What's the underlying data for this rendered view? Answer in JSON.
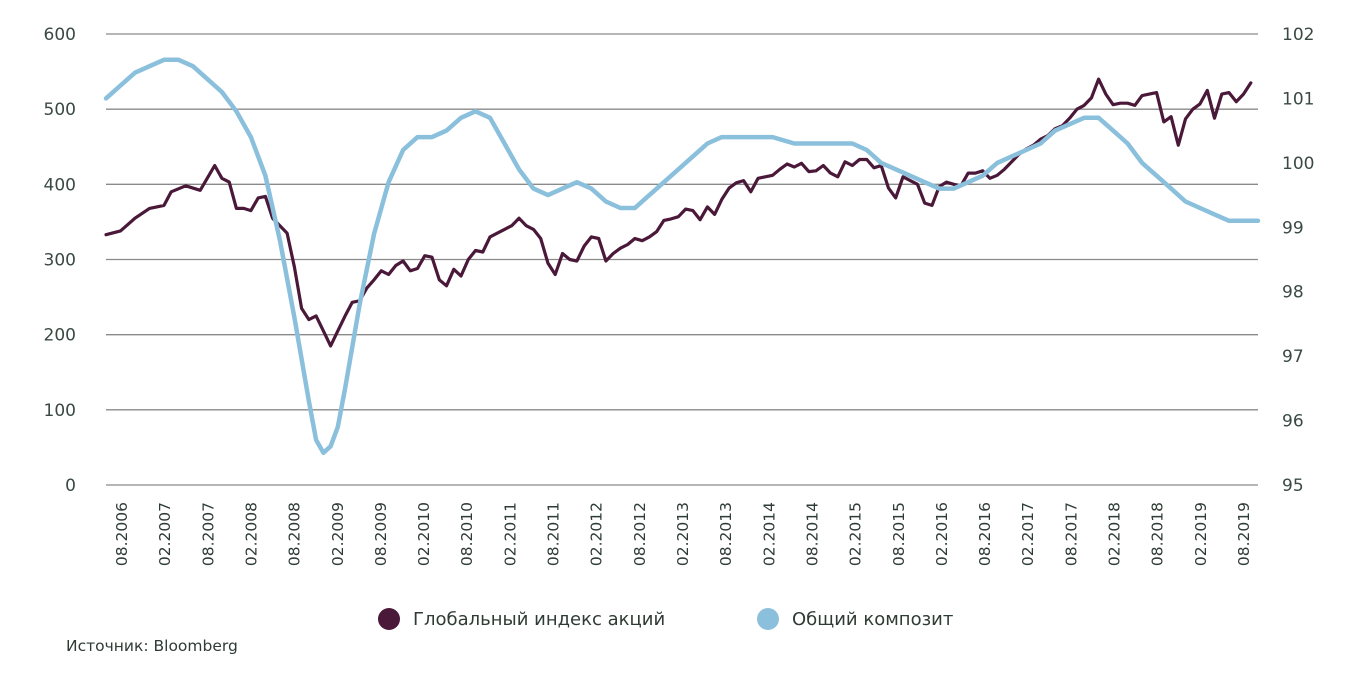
{
  "source": "Источник: Bloomberg",
  "chart_data": {
    "type": "line",
    "title": "",
    "y_left": {
      "ticks": [
        0,
        100,
        200,
        300,
        400,
        500,
        600
      ],
      "range": [
        0,
        600
      ]
    },
    "y_right": {
      "ticks": [
        95,
        96,
        97,
        98,
        99,
        100,
        101,
        102
      ],
      "range": [
        95,
        102
      ]
    },
    "x_range": [
      "2006-08",
      "2019-11"
    ],
    "x_tick_labels": [
      "08.2006",
      "02.2007",
      "08.2007",
      "02.2008",
      "08.2008",
      "02.2009",
      "08.2009",
      "02.2010",
      "08.2010",
      "02.2011",
      "08.2011",
      "02.2012",
      "08.2012",
      "02.2013",
      "08.2013",
      "02.2014",
      "08.2014",
      "02.2015",
      "08.2015",
      "02.2016",
      "08.2016",
      "02.2017",
      "08.2017",
      "02.2018",
      "08.2018",
      "02.2019",
      "08.2019"
    ],
    "grid": "horizontal",
    "legend_position": "bottom-center",
    "series": [
      {
        "name": "Глобальный индекс акций",
        "axis": "left",
        "color": "#4a1838",
        "points": [
          [
            "2006-08",
            333
          ],
          [
            "2006-10",
            338
          ],
          [
            "2006-12",
            355
          ],
          [
            "2007-02",
            368
          ],
          [
            "2007-04",
            372
          ],
          [
            "2007-05",
            390
          ],
          [
            "2007-07",
            398
          ],
          [
            "2007-09",
            392
          ],
          [
            "2007-11",
            425
          ],
          [
            "2007-12",
            408
          ],
          [
            "2008-01",
            403
          ],
          [
            "2008-02",
            368
          ],
          [
            "2008-03",
            368
          ],
          [
            "2008-04",
            365
          ],
          [
            "2008-05",
            382
          ],
          [
            "2008-06",
            384
          ],
          [
            "2008-07",
            355
          ],
          [
            "2008-08",
            345
          ],
          [
            "2008-09",
            335
          ],
          [
            "2008-10",
            290
          ],
          [
            "2008-11",
            235
          ],
          [
            "2008-12",
            220
          ],
          [
            "2009-01",
            225
          ],
          [
            "2009-02",
            205
          ],
          [
            "2009-03",
            185
          ],
          [
            "2009-04",
            205
          ],
          [
            "2009-05",
            225
          ],
          [
            "2009-06",
            243
          ],
          [
            "2009-07",
            245
          ],
          [
            "2009-08",
            262
          ],
          [
            "2009-09",
            273
          ],
          [
            "2009-10",
            285
          ],
          [
            "2009-11",
            280
          ],
          [
            "2009-12",
            292
          ],
          [
            "2010-01",
            298
          ],
          [
            "2010-02",
            285
          ],
          [
            "2010-03",
            288
          ],
          [
            "2010-04",
            305
          ],
          [
            "2010-05",
            303
          ],
          [
            "2010-06",
            273
          ],
          [
            "2010-07",
            265
          ],
          [
            "2010-08",
            287
          ],
          [
            "2010-09",
            278
          ],
          [
            "2010-10",
            300
          ],
          [
            "2010-11",
            312
          ],
          [
            "2010-12",
            310
          ],
          [
            "2011-01",
            330
          ],
          [
            "2011-02",
            335
          ],
          [
            "2011-03",
            340
          ],
          [
            "2011-04",
            345
          ],
          [
            "2011-05",
            355
          ],
          [
            "2011-06",
            345
          ],
          [
            "2011-07",
            340
          ],
          [
            "2011-08",
            328
          ],
          [
            "2011-09",
            295
          ],
          [
            "2011-10",
            280
          ],
          [
            "2011-11",
            308
          ],
          [
            "2011-12",
            300
          ],
          [
            "2012-01",
            298
          ],
          [
            "2012-02",
            318
          ],
          [
            "2012-03",
            330
          ],
          [
            "2012-04",
            328
          ],
          [
            "2012-05",
            298
          ],
          [
            "2012-06",
            308
          ],
          [
            "2012-07",
            315
          ],
          [
            "2012-08",
            320
          ],
          [
            "2012-09",
            328
          ],
          [
            "2012-10",
            325
          ],
          [
            "2012-11",
            330
          ],
          [
            "2012-12",
            337
          ],
          [
            "2013-01",
            352
          ],
          [
            "2013-02",
            354
          ],
          [
            "2013-03",
            357
          ],
          [
            "2013-04",
            367
          ],
          [
            "2013-05",
            365
          ],
          [
            "2013-06",
            353
          ],
          [
            "2013-07",
            370
          ],
          [
            "2013-08",
            360
          ],
          [
            "2013-09",
            380
          ],
          [
            "2013-10",
            395
          ],
          [
            "2013-11",
            402
          ],
          [
            "2013-12",
            405
          ],
          [
            "2014-01",
            390
          ],
          [
            "2014-02",
            408
          ],
          [
            "2014-03",
            410
          ],
          [
            "2014-04",
            412
          ],
          [
            "2014-05",
            420
          ],
          [
            "2014-06",
            427
          ],
          [
            "2014-07",
            423
          ],
          [
            "2014-08",
            428
          ],
          [
            "2014-09",
            417
          ],
          [
            "2014-10",
            418
          ],
          [
            "2014-11",
            425
          ],
          [
            "2014-12",
            415
          ],
          [
            "2015-01",
            410
          ],
          [
            "2015-02",
            430
          ],
          [
            "2015-03",
            425
          ],
          [
            "2015-04",
            433
          ],
          [
            "2015-05",
            433
          ],
          [
            "2015-06",
            422
          ],
          [
            "2015-07",
            425
          ],
          [
            "2015-08",
            395
          ],
          [
            "2015-09",
            382
          ],
          [
            "2015-10",
            410
          ],
          [
            "2015-11",
            405
          ],
          [
            "2015-12",
            400
          ],
          [
            "2016-01",
            375
          ],
          [
            "2016-02",
            372
          ],
          [
            "2016-03",
            397
          ],
          [
            "2016-04",
            403
          ],
          [
            "2016-05",
            400
          ],
          [
            "2016-06",
            398
          ],
          [
            "2016-07",
            415
          ],
          [
            "2016-08",
            415
          ],
          [
            "2016-09",
            418
          ],
          [
            "2016-10",
            408
          ],
          [
            "2016-11",
            412
          ],
          [
            "2016-12",
            420
          ],
          [
            "2017-01",
            430
          ],
          [
            "2017-02",
            440
          ],
          [
            "2017-03",
            447
          ],
          [
            "2017-04",
            452
          ],
          [
            "2017-05",
            460
          ],
          [
            "2017-06",
            465
          ],
          [
            "2017-07",
            474
          ],
          [
            "2017-08",
            478
          ],
          [
            "2017-09",
            488
          ],
          [
            "2017-10",
            500
          ],
          [
            "2017-11",
            505
          ],
          [
            "2017-12",
            515
          ],
          [
            "2018-01",
            540
          ],
          [
            "2018-02",
            520
          ],
          [
            "2018-03",
            506
          ],
          [
            "2018-04",
            508
          ],
          [
            "2018-05",
            508
          ],
          [
            "2018-06",
            505
          ],
          [
            "2018-07",
            518
          ],
          [
            "2018-08",
            520
          ],
          [
            "2018-09",
            522
          ],
          [
            "2018-10",
            483
          ],
          [
            "2018-11",
            490
          ],
          [
            "2018-12",
            452
          ],
          [
            "2019-01",
            487
          ],
          [
            "2019-02",
            500
          ],
          [
            "2019-03",
            507
          ],
          [
            "2019-04",
            525
          ],
          [
            "2019-05",
            488
          ],
          [
            "2019-06",
            520
          ],
          [
            "2019-07",
            522
          ],
          [
            "2019-08",
            510
          ],
          [
            "2019-09",
            520
          ],
          [
            "2019-10",
            535
          ]
        ]
      },
      {
        "name": "Общий композит",
        "axis": "right",
        "color": "#8bc0dc",
        "points": [
          [
            "2006-08",
            101.0
          ],
          [
            "2006-10",
            101.2
          ],
          [
            "2006-12",
            101.4
          ],
          [
            "2007-02",
            101.5
          ],
          [
            "2007-04",
            101.6
          ],
          [
            "2007-06",
            101.6
          ],
          [
            "2007-08",
            101.5
          ],
          [
            "2007-10",
            101.3
          ],
          [
            "2007-12",
            101.1
          ],
          [
            "2008-02",
            100.8
          ],
          [
            "2008-04",
            100.4
          ],
          [
            "2008-06",
            99.8
          ],
          [
            "2008-08",
            98.8
          ],
          [
            "2008-10",
            97.6
          ],
          [
            "2008-12",
            96.3
          ],
          [
            "2009-01",
            95.7
          ],
          [
            "2009-02",
            95.5
          ],
          [
            "2009-03",
            95.6
          ],
          [
            "2009-04",
            95.9
          ],
          [
            "2009-05",
            96.5
          ],
          [
            "2009-07",
            97.8
          ],
          [
            "2009-09",
            98.9
          ],
          [
            "2009-11",
            99.7
          ],
          [
            "2010-01",
            100.2
          ],
          [
            "2010-03",
            100.4
          ],
          [
            "2010-05",
            100.4
          ],
          [
            "2010-07",
            100.5
          ],
          [
            "2010-09",
            100.7
          ],
          [
            "2010-11",
            100.8
          ],
          [
            "2011-01",
            100.7
          ],
          [
            "2011-03",
            100.3
          ],
          [
            "2011-05",
            99.9
          ],
          [
            "2011-07",
            99.6
          ],
          [
            "2011-09",
            99.5
          ],
          [
            "2011-11",
            99.6
          ],
          [
            "2012-01",
            99.7
          ],
          [
            "2012-03",
            99.6
          ],
          [
            "2012-05",
            99.4
          ],
          [
            "2012-07",
            99.3
          ],
          [
            "2012-09",
            99.3
          ],
          [
            "2012-11",
            99.5
          ],
          [
            "2013-01",
            99.7
          ],
          [
            "2013-03",
            99.9
          ],
          [
            "2013-05",
            100.1
          ],
          [
            "2013-07",
            100.3
          ],
          [
            "2013-09",
            100.4
          ],
          [
            "2013-11",
            100.4
          ],
          [
            "2014-01",
            100.4
          ],
          [
            "2014-04",
            100.4
          ],
          [
            "2014-07",
            100.3
          ],
          [
            "2014-10",
            100.3
          ],
          [
            "2015-01",
            100.3
          ],
          [
            "2015-03",
            100.3
          ],
          [
            "2015-05",
            100.2
          ],
          [
            "2015-07",
            100.0
          ],
          [
            "2015-09",
            99.9
          ],
          [
            "2015-11",
            99.8
          ],
          [
            "2016-01",
            99.7
          ],
          [
            "2016-03",
            99.6
          ],
          [
            "2016-05",
            99.6
          ],
          [
            "2016-07",
            99.7
          ],
          [
            "2016-09",
            99.8
          ],
          [
            "2016-11",
            100.0
          ],
          [
            "2017-01",
            100.1
          ],
          [
            "2017-03",
            100.2
          ],
          [
            "2017-05",
            100.3
          ],
          [
            "2017-07",
            100.5
          ],
          [
            "2017-09",
            100.6
          ],
          [
            "2017-11",
            100.7
          ],
          [
            "2018-01",
            100.7
          ],
          [
            "2018-03",
            100.5
          ],
          [
            "2018-05",
            100.3
          ],
          [
            "2018-07",
            100.0
          ],
          [
            "2018-09",
            99.8
          ],
          [
            "2018-11",
            99.6
          ],
          [
            "2019-01",
            99.4
          ],
          [
            "2019-03",
            99.3
          ],
          [
            "2019-05",
            99.2
          ],
          [
            "2019-07",
            99.1
          ],
          [
            "2019-09",
            99.1
          ],
          [
            "2019-11",
            99.1
          ]
        ]
      }
    ]
  }
}
